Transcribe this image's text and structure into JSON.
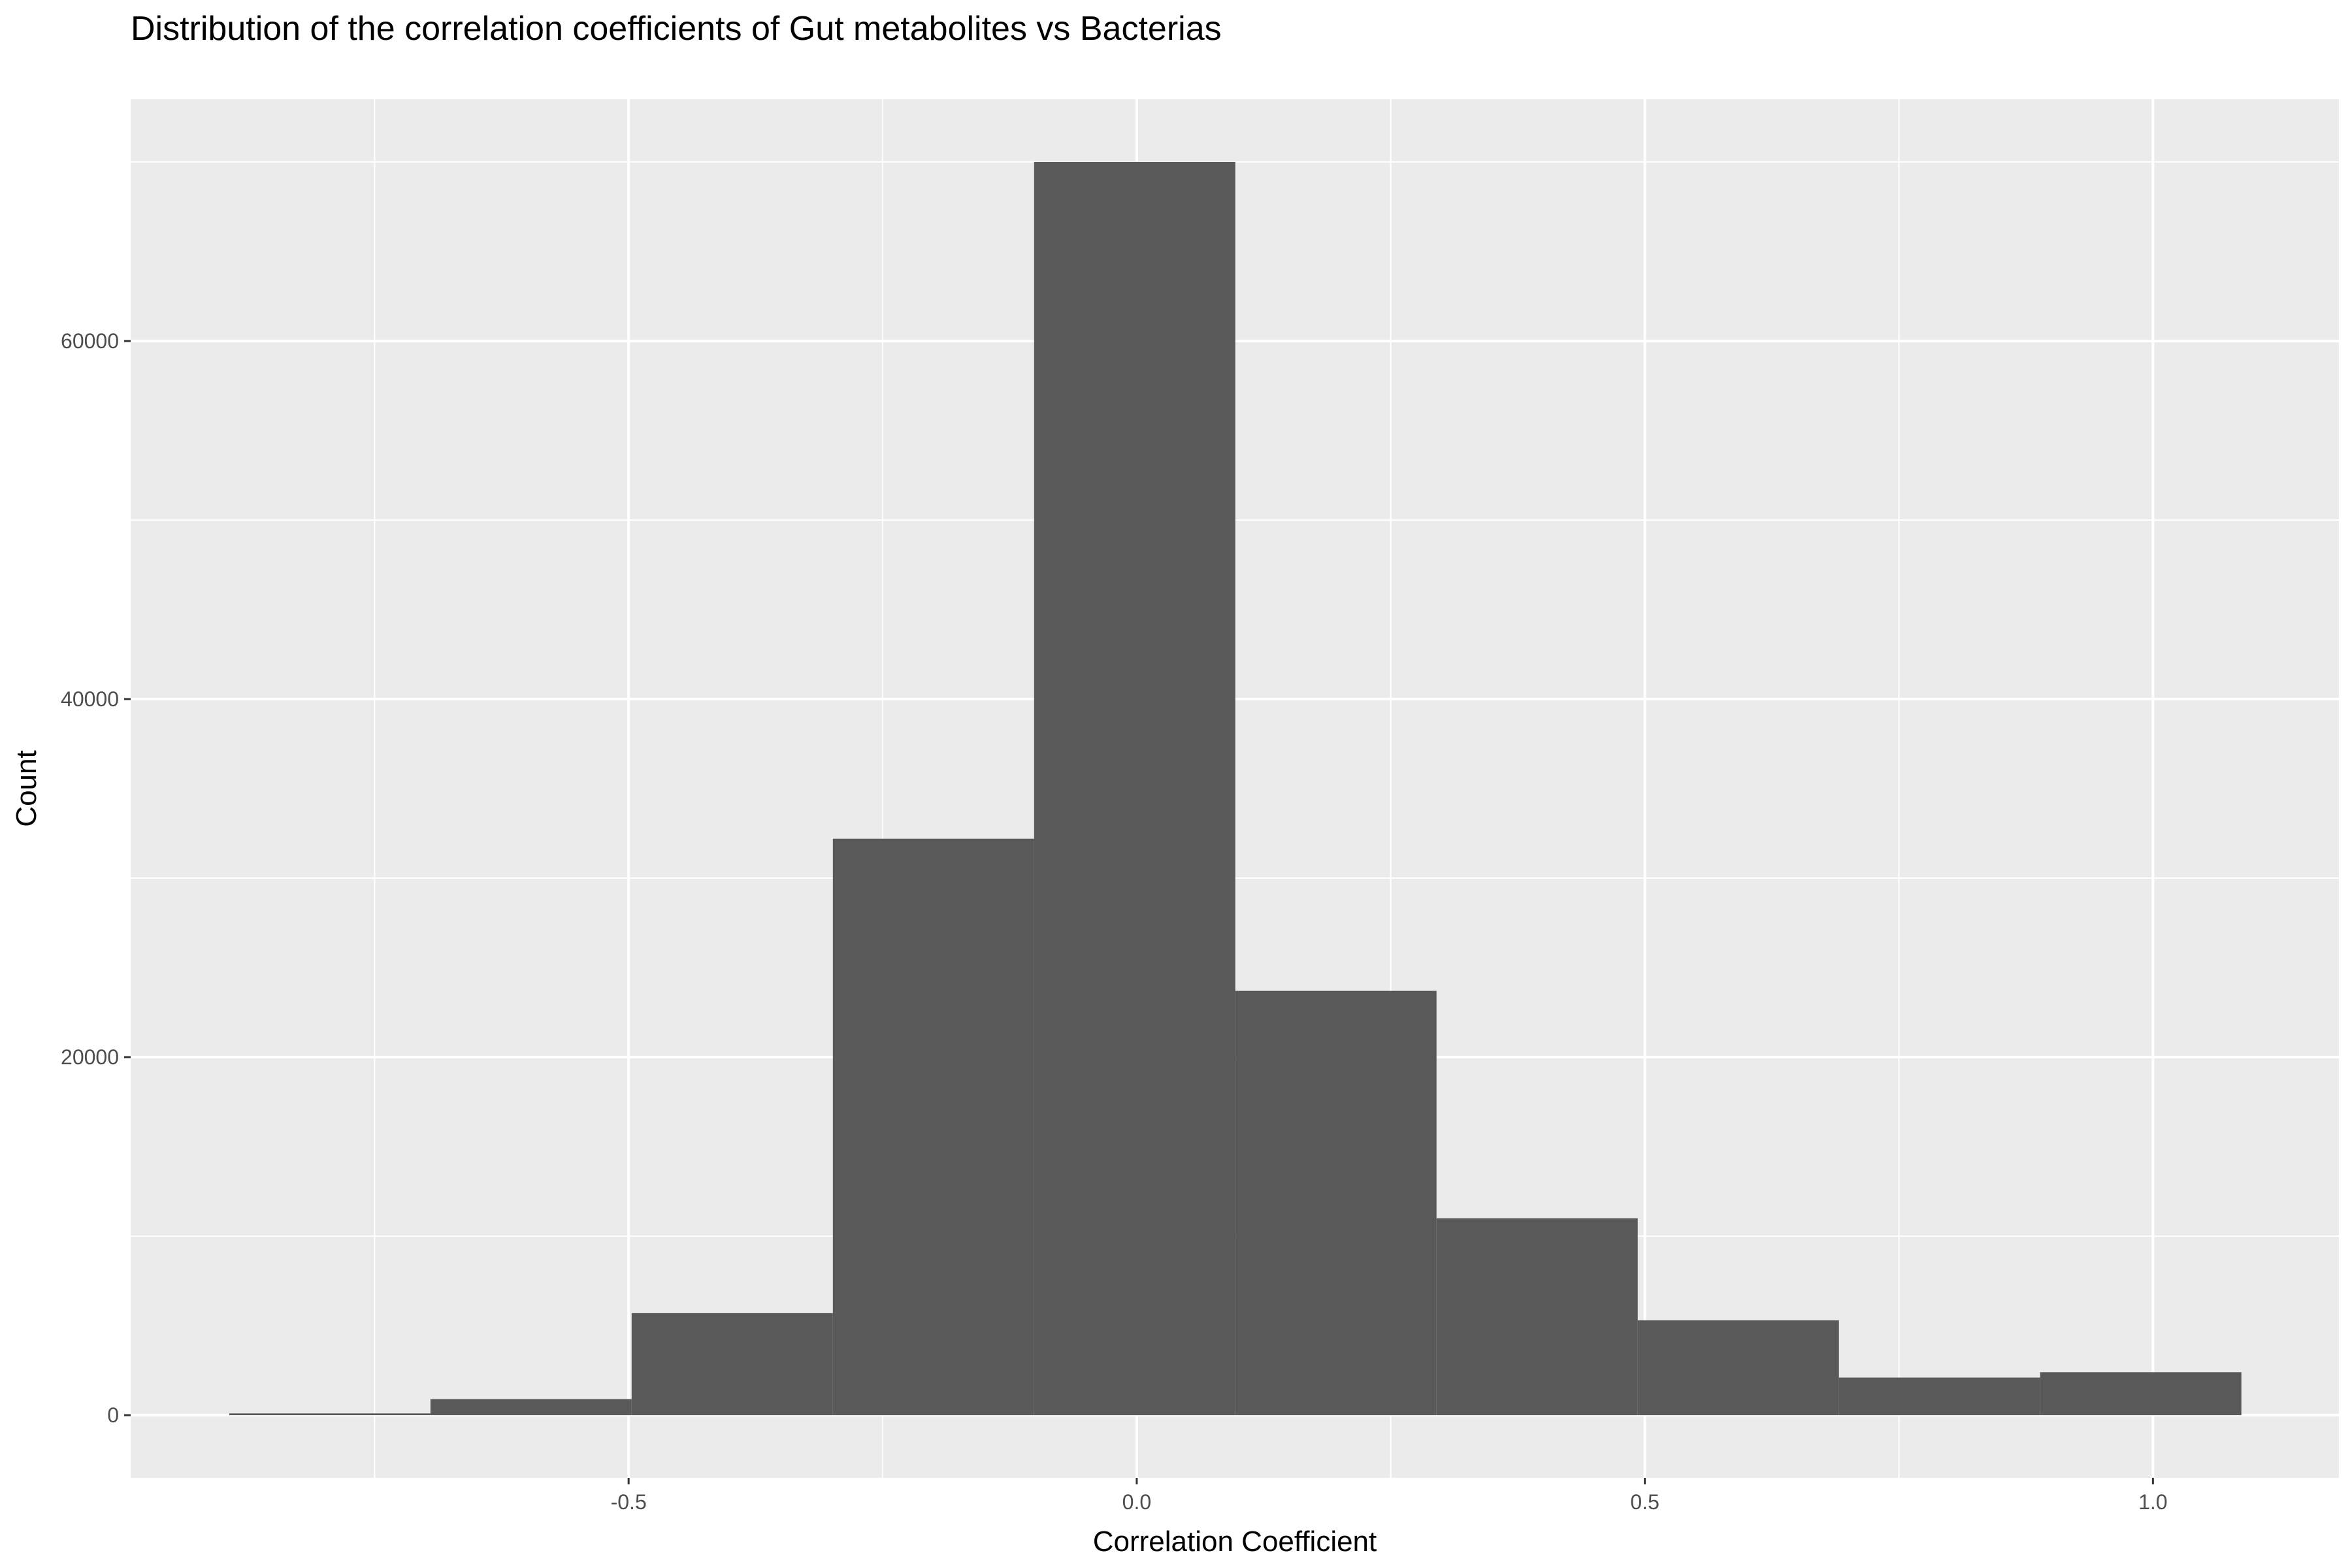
{
  "chart_data": {
    "type": "bar",
    "title": "Distribution of the correlation coefficients of Gut metabolites vs Bacterias",
    "xlabel": "Correlation Coefficient",
    "ylabel": "Count",
    "bins": [
      {
        "x0": -0.893,
        "x1": -0.695,
        "count": 100
      },
      {
        "x0": -0.695,
        "x1": -0.497,
        "count": 900
      },
      {
        "x0": -0.497,
        "x1": -0.299,
        "count": 5700
      },
      {
        "x0": -0.299,
        "x1": -0.101,
        "count": 32200
      },
      {
        "x0": -0.101,
        "x1": 0.097,
        "count": 70000
      },
      {
        "x0": 0.097,
        "x1": 0.295,
        "count": 23700
      },
      {
        "x0": 0.295,
        "x1": 0.493,
        "count": 11000
      },
      {
        "x0": 0.493,
        "x1": 0.691,
        "count": 5300
      },
      {
        "x0": 0.691,
        "x1": 0.889,
        "count": 2100
      },
      {
        "x0": 0.889,
        "x1": 1.087,
        "count": 2400
      }
    ],
    "xlim": [
      -0.99,
      1.183
    ],
    "ylim": [
      -3500,
      73500
    ],
    "x_ticks": [
      -0.5,
      0.0,
      0.5,
      1.0
    ],
    "x_tick_labels": [
      "-0.5",
      "0.0",
      "0.5",
      "1.0"
    ],
    "x_minor_ticks": [
      -0.75,
      -0.25,
      0.25,
      0.75
    ],
    "y_ticks": [
      0,
      20000,
      40000,
      60000
    ],
    "y_tick_labels": [
      "0",
      "20000",
      "40000",
      "60000"
    ],
    "y_minor_ticks": [
      10000,
      30000,
      50000,
      70000
    ],
    "grid": true,
    "legend": "none",
    "colors": {
      "panel_background": "#ebebeb",
      "grid_line": "#ffffff",
      "bar_fill": "#595959",
      "tick_text": "#4d4d4d",
      "tick_mark": "#333333",
      "title_text": "#000000"
    }
  }
}
